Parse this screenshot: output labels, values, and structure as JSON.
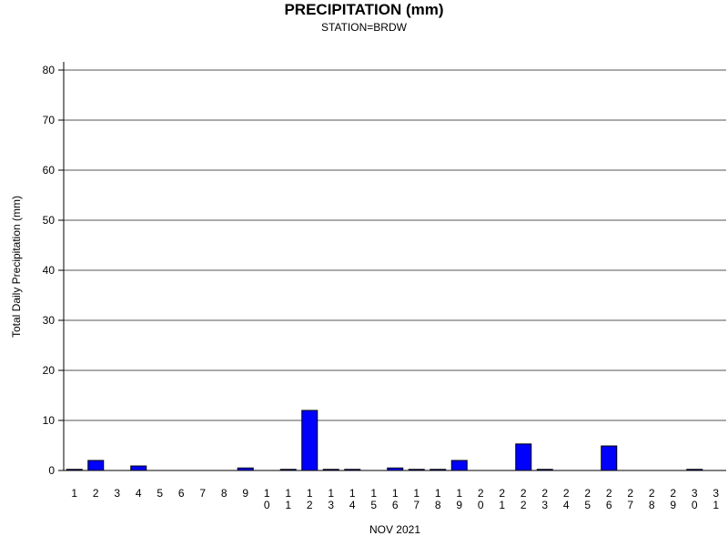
{
  "chart_data": {
    "type": "bar",
    "title": "PRECIPITATION (mm)",
    "subtitle": "STATION=BRDW",
    "xlabel": "NOV 2021",
    "ylabel": "Total Daily Precipitation (mm)",
    "categories": [
      "1",
      "2",
      "3",
      "4",
      "5",
      "6",
      "7",
      "8",
      "9",
      "10",
      "11",
      "12",
      "13",
      "14",
      "15",
      "16",
      "17",
      "18",
      "19",
      "20",
      "21",
      "22",
      "23",
      "24",
      "25",
      "26",
      "27",
      "28",
      "29",
      "30",
      "31"
    ],
    "values": [
      0.1,
      2.0,
      0,
      0.9,
      0,
      0,
      0,
      0,
      0.5,
      0,
      0.1,
      12.0,
      0.1,
      0.1,
      0,
      0.5,
      0.1,
      0.1,
      2.0,
      0,
      0,
      5.3,
      0.1,
      0,
      0,
      4.9,
      0,
      0,
      0,
      0.1,
      null
    ],
    "yticks": [
      0,
      10,
      20,
      30,
      40,
      50,
      60,
      70,
      80
    ],
    "ylim": [
      0,
      80
    ],
    "grid": true,
    "bar_color": "#0000ff",
    "bar_edge_color": "#000000",
    "grid_color": "#555555"
  }
}
